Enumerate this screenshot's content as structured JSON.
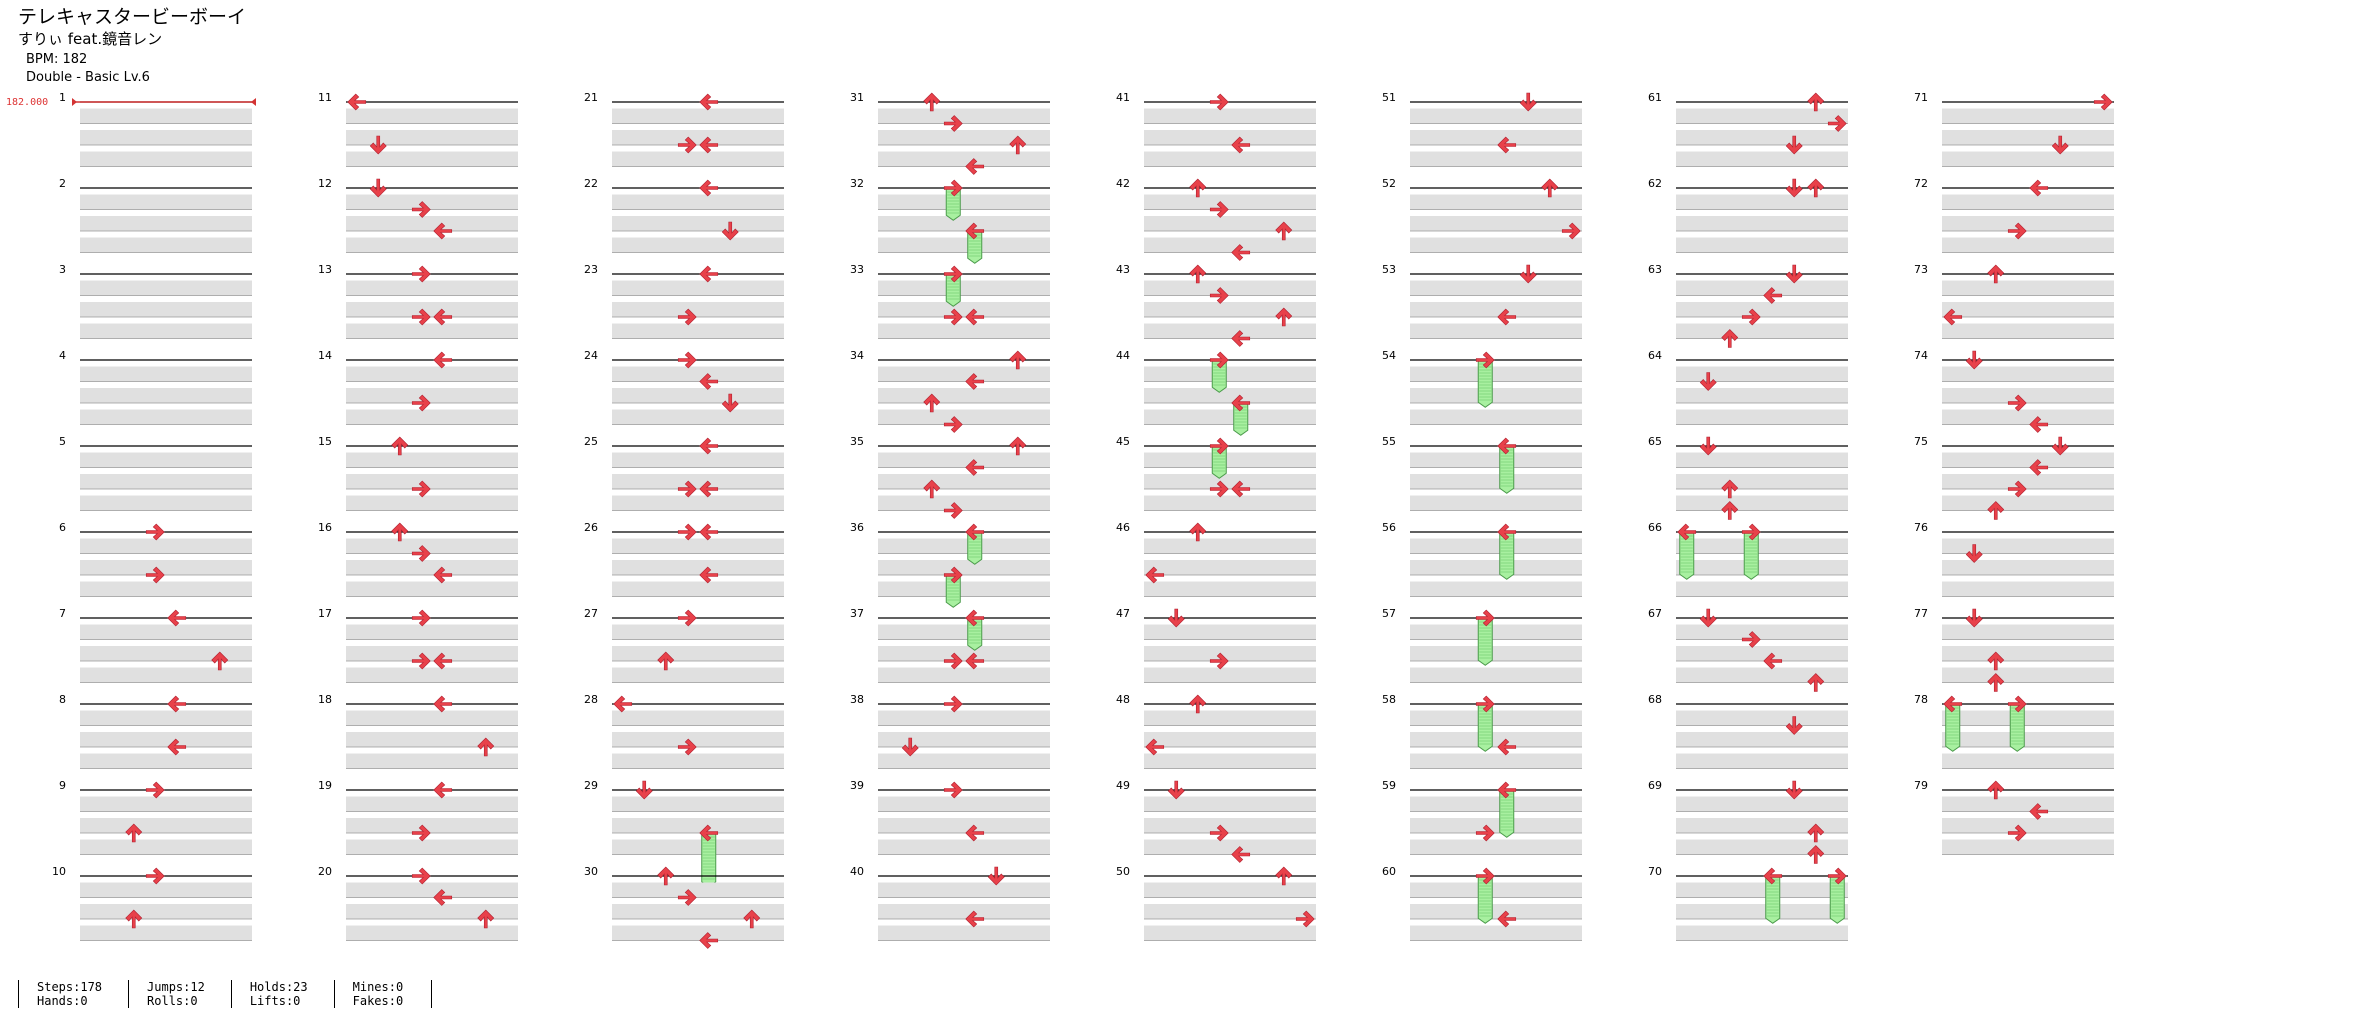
{
  "song": {
    "title": "テレキャスタービーボーイ",
    "artist": "すりぃ feat.鏡音レン",
    "bpm": "BPM: 182",
    "chart": "Double - Basic  Lv.6"
  },
  "bpm_marker": "182.000",
  "stats": [
    {
      "a": "Steps:178",
      "b": "Hands:0"
    },
    {
      "a": "Jumps:12",
      "b": "Rolls:0"
    },
    {
      "a": "Holds:23",
      "b": "Lifts:0"
    },
    {
      "a": "Mines:0",
      "b": "Fakes:0"
    }
  ],
  "colors": {
    "arrow": "#e8414a",
    "hold": "#a8f0a0",
    "hold_border": "#4a9a4a",
    "row_fill": "#e0e0e0",
    "bpm": "#d33333"
  },
  "measures": [
    {
      "n": 1,
      "notes": []
    },
    {
      "n": 2,
      "notes": []
    },
    {
      "n": 3,
      "notes": []
    },
    {
      "n": 4,
      "notes": []
    },
    {
      "n": 5,
      "notes": []
    },
    {
      "n": 6,
      "notes": [
        {
          "b": 0,
          "l": 3,
          "d": "right"
        },
        {
          "b": 2,
          "l": 3,
          "d": "right"
        }
      ]
    },
    {
      "n": 7,
      "notes": [
        {
          "b": 0,
          "l": 4,
          "d": "left"
        },
        {
          "b": 2,
          "l": 6,
          "d": "up"
        }
      ]
    },
    {
      "n": 8,
      "notes": [
        {
          "b": 0,
          "l": 4,
          "d": "left"
        },
        {
          "b": 2,
          "l": 4,
          "d": "left"
        }
      ]
    },
    {
      "n": 9,
      "notes": [
        {
          "b": 0,
          "l": 3,
          "d": "right"
        },
        {
          "b": 2,
          "l": 2,
          "d": "up"
        }
      ]
    },
    {
      "n": 10,
      "notes": [
        {
          "b": 0,
          "l": 3,
          "d": "right"
        },
        {
          "b": 2,
          "l": 2,
          "d": "up"
        }
      ]
    },
    {
      "n": 11,
      "notes": [
        {
          "b": 0,
          "l": 0,
          "d": "left"
        },
        {
          "b": 2,
          "l": 1,
          "d": "down"
        }
      ]
    },
    {
      "n": 12,
      "notes": [
        {
          "b": 0,
          "l": 1,
          "d": "down"
        },
        {
          "b": 1,
          "l": 3,
          "d": "right"
        },
        {
          "b": 2,
          "l": 4,
          "d": "left"
        }
      ]
    },
    {
      "n": 13,
      "notes": [
        {
          "b": 0,
          "l": 3,
          "d": "right"
        },
        {
          "b": 2,
          "l": 3,
          "d": "right"
        },
        {
          "b": 2,
          "l": 4,
          "d": "left"
        }
      ]
    },
    {
      "n": 14,
      "notes": [
        {
          "b": 0,
          "l": 4,
          "d": "left"
        },
        {
          "b": 2,
          "l": 3,
          "d": "right"
        }
      ]
    },
    {
      "n": 15,
      "notes": [
        {
          "b": 0,
          "l": 2,
          "d": "up"
        },
        {
          "b": 2,
          "l": 3,
          "d": "right"
        }
      ]
    },
    {
      "n": 16,
      "notes": [
        {
          "b": 0,
          "l": 2,
          "d": "up"
        },
        {
          "b": 1,
          "l": 3,
          "d": "right"
        },
        {
          "b": 2,
          "l": 4,
          "d": "left"
        }
      ]
    },
    {
      "n": 17,
      "notes": [
        {
          "b": 0,
          "l": 3,
          "d": "right"
        },
        {
          "b": 2,
          "l": 3,
          "d": "right"
        },
        {
          "b": 2,
          "l": 4,
          "d": "left"
        }
      ]
    },
    {
      "n": 18,
      "notes": [
        {
          "b": 0,
          "l": 4,
          "d": "left"
        },
        {
          "b": 2,
          "l": 6,
          "d": "up"
        }
      ]
    },
    {
      "n": 19,
      "notes": [
        {
          "b": 0,
          "l": 4,
          "d": "left"
        },
        {
          "b": 2,
          "l": 3,
          "d": "right"
        }
      ]
    },
    {
      "n": 20,
      "notes": [
        {
          "b": 0,
          "l": 3,
          "d": "right"
        },
        {
          "b": 1,
          "l": 4,
          "d": "left"
        },
        {
          "b": 2,
          "l": 6,
          "d": "up"
        }
      ]
    },
    {
      "n": 21,
      "notes": [
        {
          "b": 0,
          "l": 4,
          "d": "left"
        },
        {
          "b": 2,
          "l": 3,
          "d": "right"
        },
        {
          "b": 2,
          "l": 4,
          "d": "left"
        }
      ]
    },
    {
      "n": 22,
      "notes": [
        {
          "b": 0,
          "l": 4,
          "d": "left"
        },
        {
          "b": 2,
          "l": 5,
          "d": "down"
        }
      ]
    },
    {
      "n": 23,
      "notes": [
        {
          "b": 0,
          "l": 4,
          "d": "left"
        },
        {
          "b": 2,
          "l": 3,
          "d": "right"
        }
      ]
    },
    {
      "n": 24,
      "notes": [
        {
          "b": 0,
          "l": 3,
          "d": "right"
        },
        {
          "b": 1,
          "l": 4,
          "d": "left"
        },
        {
          "b": 2,
          "l": 5,
          "d": "down"
        }
      ]
    },
    {
      "n": 25,
      "notes": [
        {
          "b": 0,
          "l": 4,
          "d": "left"
        },
        {
          "b": 2,
          "l": 3,
          "d": "right"
        },
        {
          "b": 2,
          "l": 4,
          "d": "left"
        }
      ]
    },
    {
      "n": 26,
      "notes": [
        {
          "b": 0,
          "l": 3,
          "d": "right"
        },
        {
          "b": 0,
          "l": 4,
          "d": "left"
        },
        {
          "b": 2,
          "l": 4,
          "d": "left"
        }
      ]
    },
    {
      "n": 27,
      "notes": [
        {
          "b": 0,
          "l": 3,
          "d": "right"
        },
        {
          "b": 2,
          "l": 2,
          "d": "up"
        }
      ]
    },
    {
      "n": 28,
      "notes": [
        {
          "b": 0,
          "l": 0,
          "d": "left"
        },
        {
          "b": 2,
          "l": 3,
          "d": "right"
        }
      ]
    },
    {
      "n": 29,
      "notes": [
        {
          "b": 0,
          "l": 1,
          "d": "down"
        },
        {
          "b": 2,
          "l": 4,
          "d": "left",
          "h": 2.5
        }
      ]
    },
    {
      "n": 30,
      "notes": [
        {
          "b": 0,
          "l": 2,
          "d": "up"
        },
        {
          "b": 1,
          "l": 3,
          "d": "right"
        },
        {
          "b": 2,
          "l": 6,
          "d": "up"
        },
        {
          "b": 3,
          "l": 4,
          "d": "left"
        }
      ]
    },
    {
      "n": 31,
      "notes": [
        {
          "b": 0,
          "l": 2,
          "d": "up"
        },
        {
          "b": 1,
          "l": 3,
          "d": "right"
        },
        {
          "b": 2,
          "l": 6,
          "d": "up"
        },
        {
          "b": 3,
          "l": 4,
          "d": "left"
        }
      ]
    },
    {
      "n": 32,
      "notes": [
        {
          "b": 0,
          "l": 3,
          "d": "right",
          "h": 1.5
        },
        {
          "b": 2,
          "l": 4,
          "d": "left",
          "h": 1.5
        }
      ]
    },
    {
      "n": 33,
      "notes": [
        {
          "b": 0,
          "l": 3,
          "d": "right",
          "h": 1.5
        },
        {
          "b": 2,
          "l": 3,
          "d": "right"
        },
        {
          "b": 2,
          "l": 4,
          "d": "left"
        }
      ]
    },
    {
      "n": 34,
      "notes": [
        {
          "b": 0,
          "l": 6,
          "d": "up"
        },
        {
          "b": 1,
          "l": 4,
          "d": "left"
        },
        {
          "b": 2,
          "l": 2,
          "d": "up"
        },
        {
          "b": 3,
          "l": 3,
          "d": "right"
        }
      ]
    },
    {
      "n": 35,
      "notes": [
        {
          "b": 0,
          "l": 6,
          "d": "up"
        },
        {
          "b": 1,
          "l": 4,
          "d": "left"
        },
        {
          "b": 2,
          "l": 2,
          "d": "up"
        },
        {
          "b": 3,
          "l": 3,
          "d": "right"
        }
      ]
    },
    {
      "n": 36,
      "notes": [
        {
          "b": 0,
          "l": 4,
          "d": "left",
          "h": 1.5
        },
        {
          "b": 2,
          "l": 3,
          "d": "right",
          "h": 1.5
        }
      ]
    },
    {
      "n": 37,
      "notes": [
        {
          "b": 0,
          "l": 4,
          "d": "left",
          "h": 1.5
        },
        {
          "b": 2,
          "l": 3,
          "d": "right"
        },
        {
          "b": 2,
          "l": 4,
          "d": "left"
        }
      ]
    },
    {
      "n": 38,
      "notes": [
        {
          "b": 0,
          "l": 3,
          "d": "right"
        },
        {
          "b": 2,
          "l": 1,
          "d": "down"
        }
      ]
    },
    {
      "n": 39,
      "notes": [
        {
          "b": 0,
          "l": 3,
          "d": "right"
        },
        {
          "b": 2,
          "l": 4,
          "d": "left"
        }
      ]
    },
    {
      "n": 40,
      "notes": [
        {
          "b": 0,
          "l": 5,
          "d": "down"
        },
        {
          "b": 2,
          "l": 4,
          "d": "left"
        }
      ]
    },
    {
      "n": 41,
      "notes": [
        {
          "b": 0,
          "l": 3,
          "d": "right"
        },
        {
          "b": 2,
          "l": 4,
          "d": "left"
        }
      ]
    },
    {
      "n": 42,
      "notes": [
        {
          "b": 0,
          "l": 2,
          "d": "up"
        },
        {
          "b": 1,
          "l": 3,
          "d": "right"
        },
        {
          "b": 2,
          "l": 6,
          "d": "up"
        },
        {
          "b": 3,
          "l": 4,
          "d": "left"
        }
      ]
    },
    {
      "n": 43,
      "notes": [
        {
          "b": 0,
          "l": 2,
          "d": "up"
        },
        {
          "b": 1,
          "l": 3,
          "d": "right"
        },
        {
          "b": 2,
          "l": 6,
          "d": "up"
        },
        {
          "b": 3,
          "l": 4,
          "d": "left"
        }
      ]
    },
    {
      "n": 44,
      "notes": [
        {
          "b": 0,
          "l": 3,
          "d": "right",
          "h": 1.5
        },
        {
          "b": 2,
          "l": 4,
          "d": "left",
          "h": 1.5
        }
      ]
    },
    {
      "n": 45,
      "notes": [
        {
          "b": 0,
          "l": 3,
          "d": "right",
          "h": 1.5
        },
        {
          "b": 2,
          "l": 3,
          "d": "right"
        },
        {
          "b": 2,
          "l": 4,
          "d": "left"
        }
      ]
    },
    {
      "n": 46,
      "notes": [
        {
          "b": 0,
          "l": 2,
          "d": "up"
        },
        {
          "b": 2,
          "l": 0,
          "d": "left"
        }
      ]
    },
    {
      "n": 47,
      "notes": [
        {
          "b": 0,
          "l": 1,
          "d": "down"
        },
        {
          "b": 2,
          "l": 3,
          "d": "right"
        }
      ]
    },
    {
      "n": 48,
      "notes": [
        {
          "b": 0,
          "l": 2,
          "d": "up"
        },
        {
          "b": 2,
          "l": 0,
          "d": "left"
        }
      ]
    },
    {
      "n": 49,
      "notes": [
        {
          "b": 0,
          "l": 1,
          "d": "down"
        },
        {
          "b": 2,
          "l": 3,
          "d": "right"
        },
        {
          "b": 3,
          "l": 4,
          "d": "left"
        }
      ]
    },
    {
      "n": 50,
      "notes": [
        {
          "b": 0,
          "l": 6,
          "d": "up"
        },
        {
          "b": 2,
          "l": 7,
          "d": "right"
        }
      ]
    },
    {
      "n": 51,
      "notes": [
        {
          "b": 0,
          "l": 5,
          "d": "down"
        },
        {
          "b": 2,
          "l": 4,
          "d": "left"
        }
      ]
    },
    {
      "n": 52,
      "notes": [
        {
          "b": 0,
          "l": 6,
          "d": "up"
        },
        {
          "b": 2,
          "l": 7,
          "d": "right"
        }
      ]
    },
    {
      "n": 53,
      "notes": [
        {
          "b": 0,
          "l": 5,
          "d": "down"
        },
        {
          "b": 2,
          "l": 4,
          "d": "left"
        }
      ]
    },
    {
      "n": 54,
      "notes": [
        {
          "b": 0,
          "l": 3,
          "d": "right",
          "h": 2.2
        }
      ]
    },
    {
      "n": 55,
      "notes": [
        {
          "b": 0,
          "l": 4,
          "d": "left",
          "h": 2.2
        }
      ]
    },
    {
      "n": 56,
      "notes": [
        {
          "b": 0,
          "l": 4,
          "d": "left",
          "h": 2.2
        }
      ]
    },
    {
      "n": 57,
      "notes": [
        {
          "b": 0,
          "l": 3,
          "d": "right",
          "h": 2.2
        }
      ]
    },
    {
      "n": 58,
      "notes": [
        {
          "b": 0,
          "l": 3,
          "d": "right",
          "h": 2.2
        },
        {
          "b": 2,
          "l": 4,
          "d": "left"
        }
      ]
    },
    {
      "n": 59,
      "notes": [
        {
          "b": 0,
          "l": 4,
          "d": "left",
          "h": 2.2
        },
        {
          "b": 2,
          "l": 3,
          "d": "right"
        }
      ]
    },
    {
      "n": 60,
      "notes": [
        {
          "b": 0,
          "l": 3,
          "d": "right",
          "h": 2.2
        },
        {
          "b": 2,
          "l": 4,
          "d": "left"
        }
      ]
    },
    {
      "n": 61,
      "notes": [
        {
          "b": 0,
          "l": 6,
          "d": "up"
        },
        {
          "b": 1,
          "l": 7,
          "d": "right"
        },
        {
          "b": 2,
          "l": 5,
          "d": "down"
        }
      ]
    },
    {
      "n": 62,
      "notes": [
        {
          "b": 0,
          "l": 5,
          "d": "down"
        },
        {
          "b": 0,
          "l": 6,
          "d": "up"
        }
      ]
    },
    {
      "n": 63,
      "notes": [
        {
          "b": 0,
          "l": 5,
          "d": "down"
        },
        {
          "b": 1,
          "l": 4,
          "d": "left"
        },
        {
          "b": 2,
          "l": 3,
          "d": "right"
        },
        {
          "b": 3,
          "l": 2,
          "d": "up"
        }
      ]
    },
    {
      "n": 64,
      "notes": [
        {
          "b": 1,
          "l": 1,
          "d": "down"
        }
      ]
    },
    {
      "n": 65,
      "notes": [
        {
          "b": 0,
          "l": 1,
          "d": "down"
        },
        {
          "b": 2,
          "l": 2,
          "d": "up"
        },
        {
          "b": 3,
          "l": 2,
          "d": "up"
        }
      ]
    },
    {
      "n": 66,
      "notes": [
        {
          "b": 0,
          "l": 0,
          "d": "left",
          "h": 2.2
        },
        {
          "b": 0,
          "l": 3,
          "d": "right",
          "h": 2.2
        }
      ]
    },
    {
      "n": 67,
      "notes": [
        {
          "b": 0,
          "l": 1,
          "d": "down"
        },
        {
          "b": 1,
          "l": 3,
          "d": "right"
        },
        {
          "b": 2,
          "l": 4,
          "d": "left"
        },
        {
          "b": 3,
          "l": 6,
          "d": "up"
        }
      ]
    },
    {
      "n": 68,
      "notes": [
        {
          "b": 1,
          "l": 5,
          "d": "down"
        }
      ]
    },
    {
      "n": 69,
      "notes": [
        {
          "b": 0,
          "l": 5,
          "d": "down"
        },
        {
          "b": 2,
          "l": 6,
          "d": "up"
        },
        {
          "b": 3,
          "l": 6,
          "d": "up"
        }
      ]
    },
    {
      "n": 70,
      "notes": [
        {
          "b": 0,
          "l": 4,
          "d": "left",
          "h": 2.2
        },
        {
          "b": 0,
          "l": 7,
          "d": "right",
          "h": 2.2
        }
      ]
    },
    {
      "n": 71,
      "notes": [
        {
          "b": 0,
          "l": 7,
          "d": "right"
        },
        {
          "b": 2,
          "l": 5,
          "d": "down"
        }
      ]
    },
    {
      "n": 72,
      "notes": [
        {
          "b": 0,
          "l": 4,
          "d": "left"
        },
        {
          "b": 2,
          "l": 3,
          "d": "right"
        }
      ]
    },
    {
      "n": 73,
      "notes": [
        {
          "b": 0,
          "l": 2,
          "d": "up"
        },
        {
          "b": 2,
          "l": 0,
          "d": "left"
        }
      ]
    },
    {
      "n": 74,
      "notes": [
        {
          "b": 0,
          "l": 1,
          "d": "down"
        },
        {
          "b": 2,
          "l": 3,
          "d": "right"
        },
        {
          "b": 3,
          "l": 4,
          "d": "left"
        }
      ]
    },
    {
      "n": 75,
      "notes": [
        {
          "b": 0,
          "l": 5,
          "d": "down"
        },
        {
          "b": 1,
          "l": 4,
          "d": "left"
        },
        {
          "b": 2,
          "l": 3,
          "d": "right"
        },
        {
          "b": 3,
          "l": 2,
          "d": "up"
        }
      ]
    },
    {
      "n": 76,
      "notes": [
        {
          "b": 1,
          "l": 1,
          "d": "down"
        }
      ]
    },
    {
      "n": 77,
      "notes": [
        {
          "b": 0,
          "l": 1,
          "d": "down"
        },
        {
          "b": 2,
          "l": 2,
          "d": "up"
        },
        {
          "b": 3,
          "l": 2,
          "d": "up"
        }
      ]
    },
    {
      "n": 78,
      "notes": [
        {
          "b": 0,
          "l": 0,
          "d": "left",
          "h": 2.2
        },
        {
          "b": 0,
          "l": 3,
          "d": "right",
          "h": 2.2
        }
      ]
    },
    {
      "n": 79,
      "notes": [
        {
          "b": 0,
          "l": 2,
          "d": "up"
        },
        {
          "b": 1,
          "l": 4,
          "d": "left"
        },
        {
          "b": 2,
          "l": 3,
          "d": "right"
        }
      ]
    }
  ]
}
